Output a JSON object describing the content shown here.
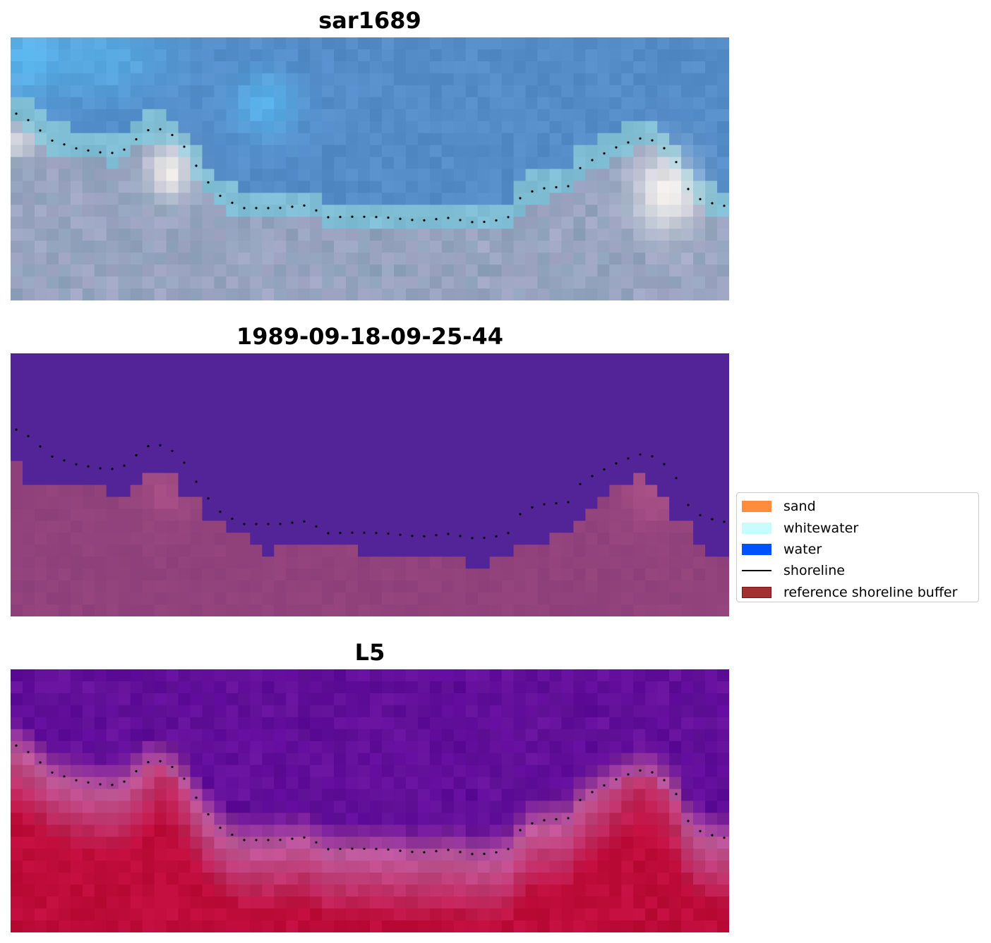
{
  "panels": [
    {
      "title": "sar1689",
      "style": "rgb"
    },
    {
      "title": "1989-09-18-09-25-44",
      "style": "classified"
    },
    {
      "title": "L5",
      "style": "index"
    }
  ],
  "legend": {
    "items": [
      {
        "label": "sand",
        "color": "#ff8c3c",
        "kind": "patch"
      },
      {
        "label": "whitewater",
        "color": "#c8fcff",
        "kind": "patch"
      },
      {
        "label": "water",
        "color": "#0052ff",
        "kind": "patch"
      },
      {
        "label": "shoreline",
        "color": "#000000",
        "kind": "line"
      },
      {
        "label": "reference shoreline buffer",
        "color": "#a23030",
        "edge": "#7a1515",
        "kind": "patch"
      }
    ]
  },
  "colors": {
    "classified_water": "#522497",
    "classified_land": "#8d3f79",
    "index_low": "#5e0a99",
    "index_mid": "#c05a9a",
    "index_high": "#be0c3a"
  }
}
